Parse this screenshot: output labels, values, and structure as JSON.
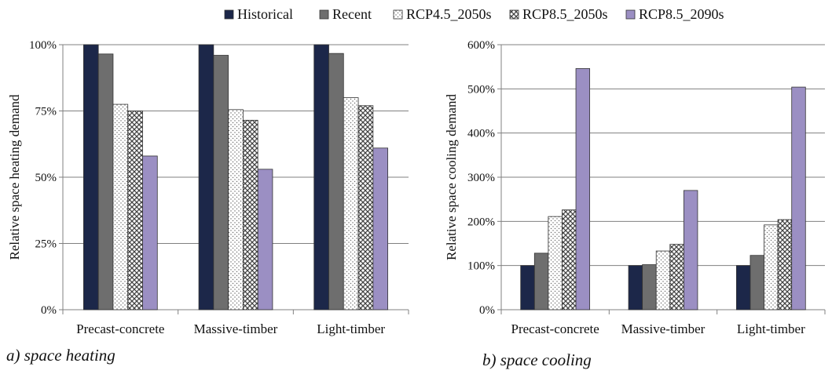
{
  "legend": [
    {
      "name": "Historical",
      "color": "#1c2749",
      "pattern": "solid"
    },
    {
      "name": "Recent",
      "color": "#6e6e6e",
      "pattern": "solid"
    },
    {
      "name": "RCP4.5_2050s",
      "color": "#ffffff",
      "pattern": "dots"
    },
    {
      "name": "RCP8.5_2050s",
      "color": "#9a9a9a",
      "pattern": "crosshatch"
    },
    {
      "name": "RCP8.5_2090s",
      "color": "#9b8fc3",
      "pattern": "solid"
    }
  ],
  "chart_data": [
    {
      "type": "bar",
      "caption": "a)  space heating",
      "ylabel": "Relative space heating demand",
      "categories": [
        "Precast-concrete",
        "Massive-timber",
        "Light-timber"
      ],
      "ylim": [
        0,
        100
      ],
      "yticks": [
        0,
        25,
        50,
        75,
        100
      ],
      "ytick_labels": [
        "0%",
        "25%",
        "50%",
        "75%",
        "100%"
      ],
      "grid": true,
      "series": [
        {
          "name": "Historical",
          "values": [
            100,
            100,
            100
          ]
        },
        {
          "name": "Recent",
          "values": [
            96.5,
            96,
            96.7
          ]
        },
        {
          "name": "RCP4.5_2050s",
          "values": [
            77.5,
            75.5,
            80
          ]
        },
        {
          "name": "RCP8.5_2050s",
          "values": [
            75,
            71.5,
            77
          ]
        },
        {
          "name": "RCP8.5_2090s",
          "values": [
            58,
            53,
            61
          ]
        }
      ]
    },
    {
      "type": "bar",
      "caption": "b)  space cooling",
      "ylabel": "Relative space cooling demand",
      "categories": [
        "Precast-concrete",
        "Massive-timber",
        "Light-timber"
      ],
      "ylim": [
        0,
        600
      ],
      "yticks": [
        0,
        100,
        200,
        300,
        400,
        500,
        600
      ],
      "ytick_labels": [
        "0%",
        "100%",
        "200%",
        "300%",
        "400%",
        "500%",
        "600%"
      ],
      "grid": true,
      "series": [
        {
          "name": "Historical",
          "values": [
            100,
            100,
            100
          ]
        },
        {
          "name": "Recent",
          "values": [
            128,
            102,
            123
          ]
        },
        {
          "name": "RCP4.5_2050s",
          "values": [
            211,
            133,
            192
          ]
        },
        {
          "name": "RCP8.5_2050s",
          "values": [
            226,
            148,
            204
          ]
        },
        {
          "name": "RCP8.5_2090s",
          "values": [
            546,
            270,
            504
          ]
        }
      ]
    }
  ]
}
